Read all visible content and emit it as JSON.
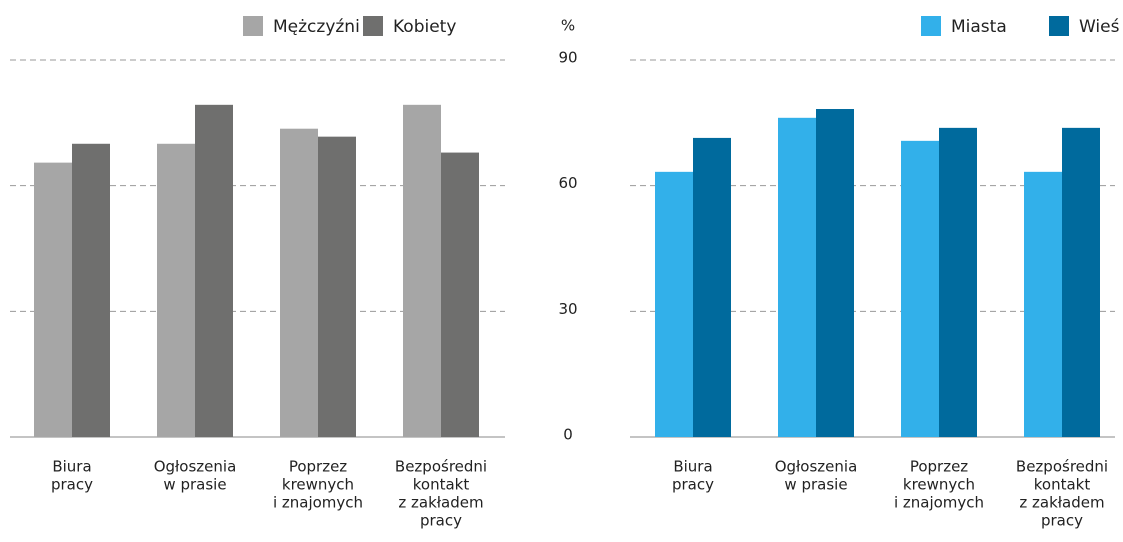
{
  "chart_data": [
    {
      "type": "bar",
      "y_label": "%",
      "categories": [
        [
          "Biura",
          "pracy"
        ],
        [
          "Ogłoszenia",
          "w prasie"
        ],
        [
          "Poprzez",
          "krewnych",
          "i znajomych"
        ],
        [
          "Bezpośredni",
          "kontakt",
          "z zakładem",
          "pracy"
        ]
      ],
      "series": [
        {
          "name": "Mężczyźni",
          "color": "#a6a6a6",
          "values": [
            65.5,
            70,
            73.6,
            79.3
          ]
        },
        {
          "name": "Kobiety",
          "color": "#6f6f6e",
          "values": [
            70,
            79.3,
            71.7,
            67.9
          ]
        }
      ],
      "ylim": [
        0,
        90
      ],
      "yticks": [
        0,
        30,
        60,
        90
      ],
      "grid": true
    },
    {
      "type": "bar",
      "categories": [
        [
          "Biura",
          "pracy"
        ],
        [
          "Ogłoszenia",
          "w prasie"
        ],
        [
          "Poprzez",
          "krewnych",
          "i znajomych"
        ],
        [
          "Bezpośredni",
          "kontakt",
          "z zakładem",
          "pracy"
        ]
      ],
      "series": [
        {
          "name": "Miasta",
          "color": "#32b0ea",
          "values": [
            63.3,
            76.2,
            70.7,
            63.3
          ]
        },
        {
          "name": "Wieś",
          "color": "#006a9d",
          "values": [
            71.4,
            78.3,
            73.8,
            73.8
          ]
        }
      ],
      "ylim": [
        0,
        90
      ],
      "yticks": [
        0,
        30,
        60,
        90
      ],
      "grid": true
    }
  ]
}
